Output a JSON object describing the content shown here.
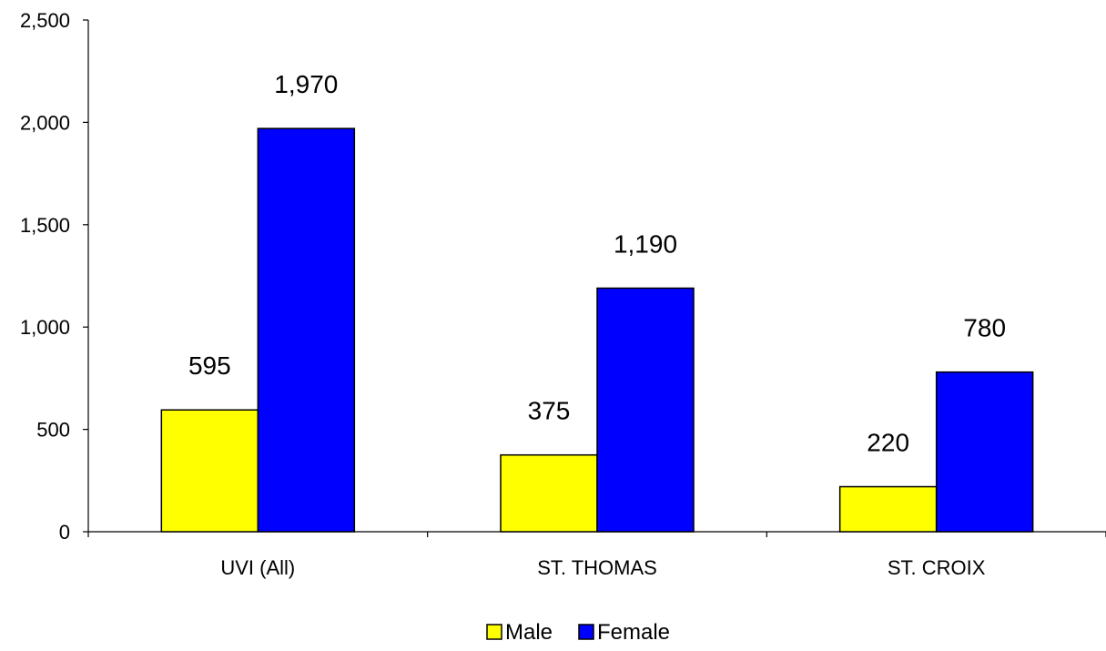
{
  "chart_data": {
    "type": "bar",
    "categories": [
      "UVI (All)",
      "ST. THOMAS",
      "ST. CROIX"
    ],
    "series": [
      {
        "name": "Male",
        "values": [
          595,
          375,
          220
        ],
        "color": "#FFFF00"
      },
      {
        "name": "Female",
        "values": [
          1970,
          1190,
          780
        ],
        "color": "#0000FF"
      }
    ],
    "data_labels": [
      [
        "595",
        "375",
        "220"
      ],
      [
        "1,970",
        "1,190",
        "780"
      ]
    ],
    "y_ticks": [
      0,
      500,
      1000,
      1500,
      2000,
      2500
    ],
    "y_tick_labels": [
      "0",
      "500",
      "1,000",
      "1,500",
      "2,000",
      "2,500"
    ],
    "ylim": [
      0,
      2500
    ],
    "grid": false,
    "legend_position": "bottom-center",
    "title": "",
    "xlabel": "",
    "ylabel": ""
  }
}
